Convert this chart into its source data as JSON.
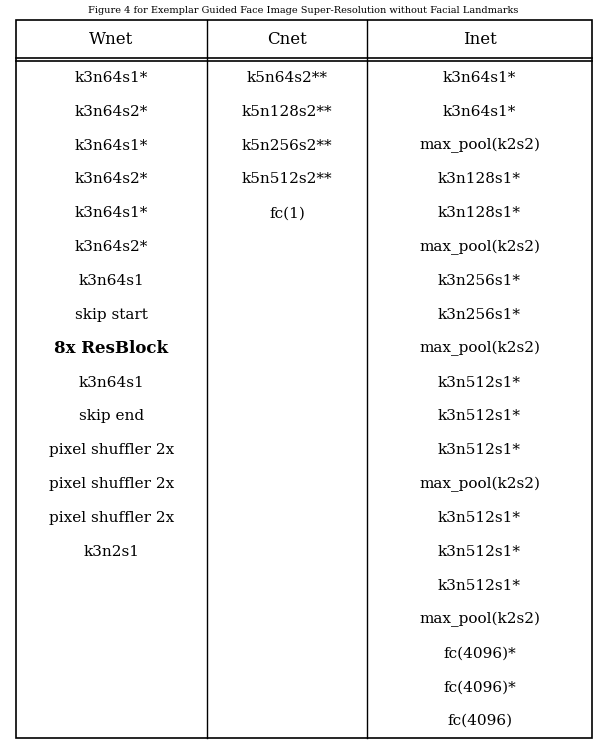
{
  "title": "Figure 4 for Exemplar Guided Face Image Super-Resolution without Facial Landmarks",
  "headers": [
    "Wnet",
    "Cnet",
    "Inet"
  ],
  "col1": [
    "k3n64s1*",
    "k3n64s2*",
    "k3n64s1*",
    "k3n64s2*",
    "k3n64s1*",
    "k3n64s2*",
    "k3n64s1",
    "skip start",
    "8x ResBlock",
    "k3n64s1",
    "skip end",
    "pixel shuffler 2x",
    "pixel shuffler 2x",
    "pixel shuffler 2x",
    "k3n2s1"
  ],
  "col2": [
    "k5n64s2**",
    "k5n128s2**",
    "k5n256s2**",
    "k5n512s2**",
    "fc(1)"
  ],
  "col3": [
    "k3n64s1*",
    "k3n64s1*",
    "max_pool(k2s2)",
    "k3n128s1*",
    "k3n128s1*",
    "max_pool(k2s2)",
    "k3n256s1*",
    "k3n256s1*",
    "max_pool(k2s2)",
    "k3n512s1*",
    "k3n512s1*",
    "k3n512s1*",
    "max_pool(k2s2)",
    "k3n512s1*",
    "k3n512s1*",
    "k3n512s1*",
    "max_pool(k2s2)",
    "fc(4096)*",
    "fc(4096)*",
    "fc(4096)"
  ],
  "bg_color": "#ffffff",
  "text_color": "#000000",
  "border_color": "#000000",
  "title_fontsize": 7.0,
  "header_fontsize": 12,
  "body_fontsize": 11,
  "resblock_fontsize": 12
}
